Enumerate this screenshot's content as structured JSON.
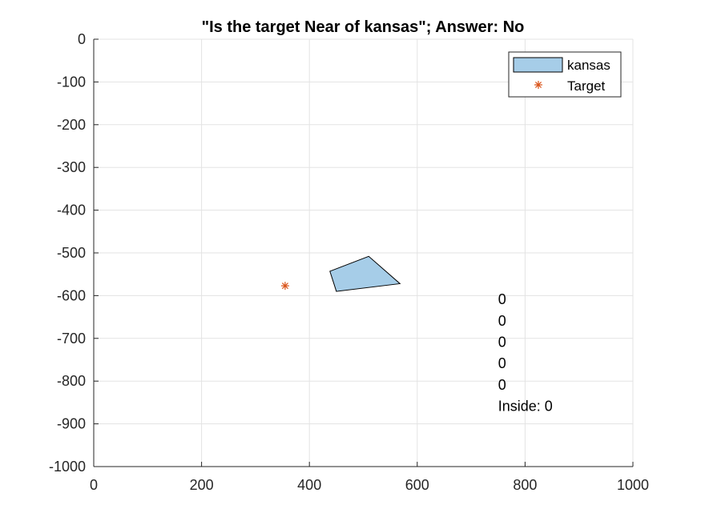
{
  "chart_data": {
    "type": "scatter",
    "title": "\"Is the target Near of kansas\"; Answer: No",
    "xlabel": "",
    "ylabel": "",
    "xlim": [
      0,
      1000
    ],
    "ylim": [
      -1000,
      0
    ],
    "grid": true,
    "x_ticks": [
      0,
      200,
      400,
      600,
      800,
      1000
    ],
    "y_ticks": [
      0,
      -100,
      -200,
      -300,
      -400,
      -500,
      -600,
      -700,
      -800,
      -900,
      -1000
    ],
    "legend": {
      "placement": "top-right",
      "entries": [
        "kansas",
        "Target"
      ]
    },
    "polygon": {
      "name": "kansas",
      "color": "#a6cde8",
      "edge_color": "#000000",
      "x": [
        438,
        510,
        568,
        450
      ],
      "y": [
        -543,
        -508,
        -572,
        -590
      ]
    },
    "target": {
      "name": "Target",
      "color": "#d95319",
      "x": 355,
      "y": -577
    },
    "annotations": {
      "x": 750,
      "lines": [
        "0",
        "0",
        "0",
        "0",
        "0",
        "Inside: 0"
      ],
      "y": [
        -620,
        -670,
        -720,
        -770,
        -820,
        -870
      ]
    }
  }
}
